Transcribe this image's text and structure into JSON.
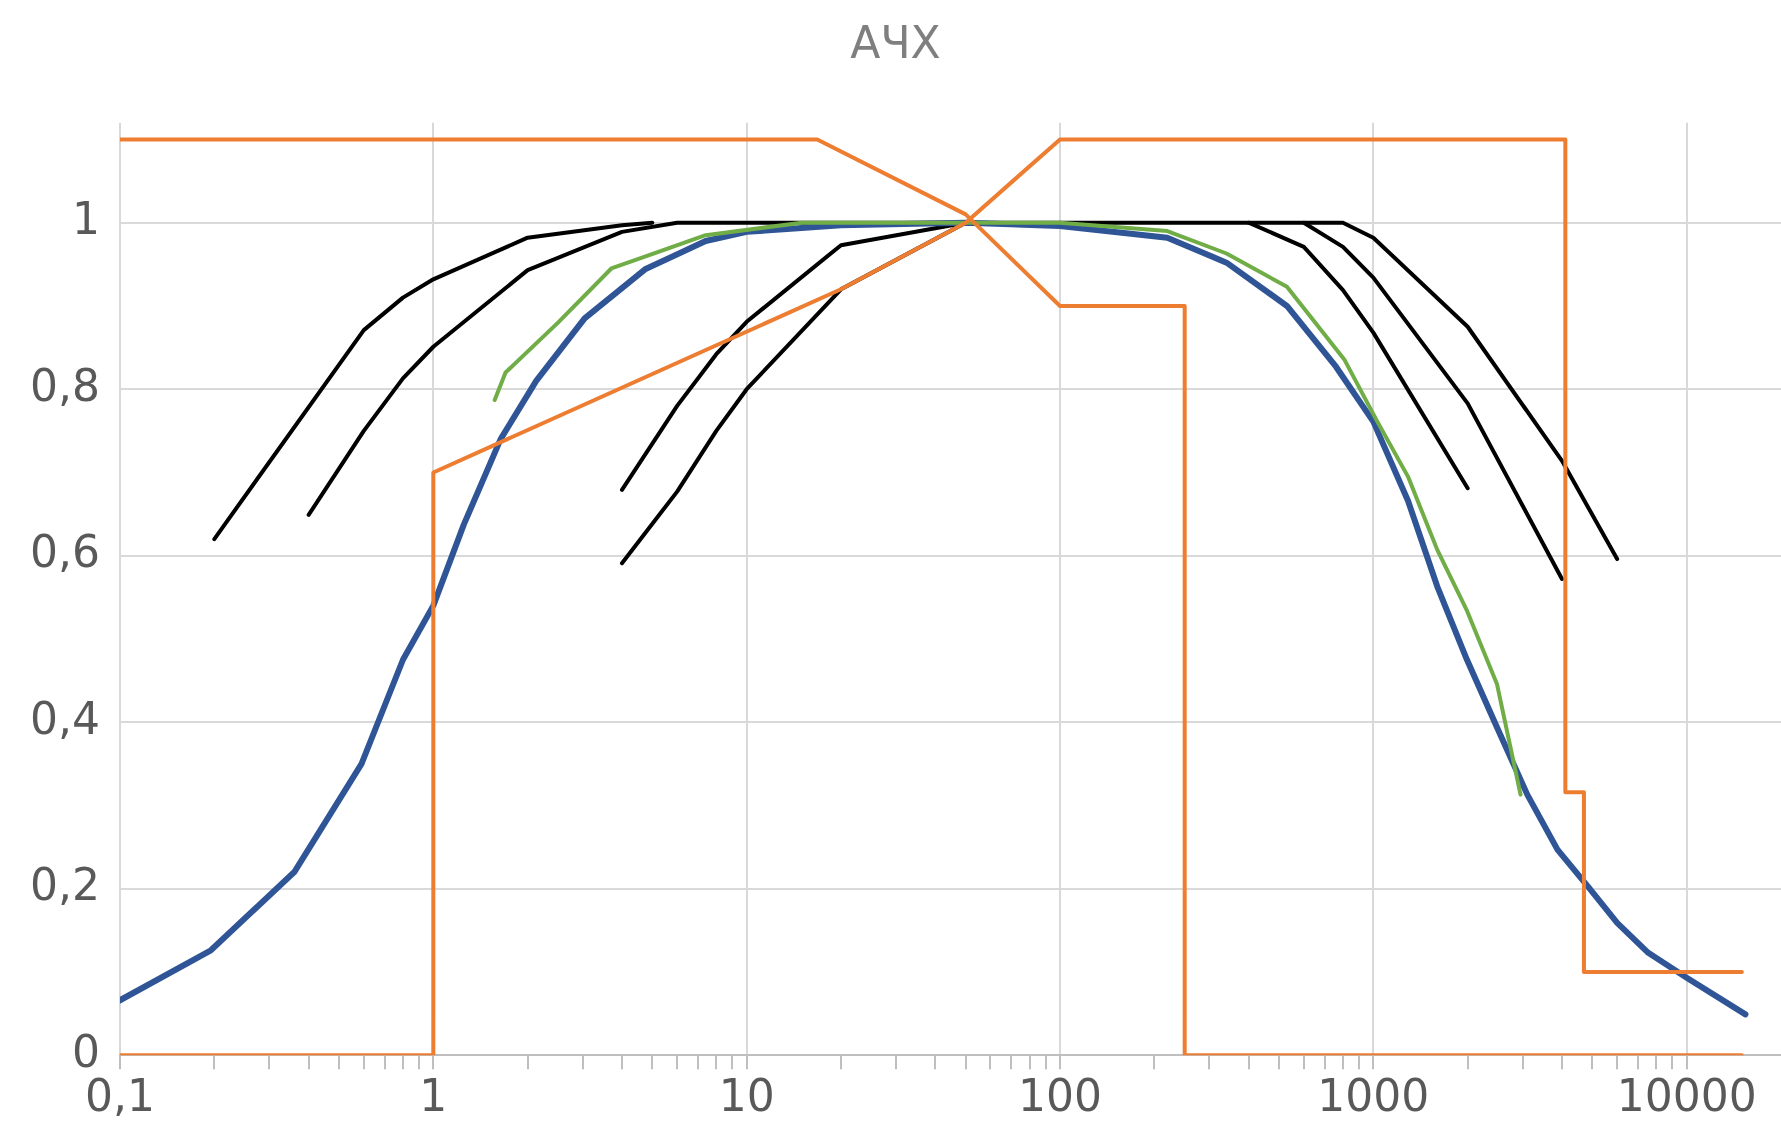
{
  "chart_data": {
    "type": "line",
    "title": "АЧХ",
    "log": "x",
    "grid": true,
    "xlim": [
      0.1,
      20000
    ],
    "xticks": [
      {
        "value": 0.1,
        "label": "0,1"
      },
      {
        "value": 0.2,
        "label": null
      },
      {
        "value": 0.3,
        "label": null
      },
      {
        "value": 0.4,
        "label": null
      },
      {
        "value": 0.5,
        "label": null
      },
      {
        "value": 0.6,
        "label": null
      },
      {
        "value": 0.7,
        "label": null
      },
      {
        "value": 0.8,
        "label": null
      },
      {
        "value": 0.9,
        "label": null
      },
      1,
      {
        "value": 2,
        "label": null
      },
      {
        "value": 3,
        "label": null
      },
      {
        "value": 4,
        "label": null
      },
      {
        "value": 5,
        "label": null
      },
      {
        "value": 6,
        "label": null
      },
      {
        "value": 7,
        "label": null
      },
      {
        "value": 8,
        "label": null
      },
      {
        "value": 9,
        "label": null
      },
      10,
      {
        "value": 20,
        "label": null
      },
      {
        "value": 30,
        "label": null
      },
      {
        "value": 40,
        "label": null
      },
      {
        "value": 50,
        "label": null
      },
      {
        "value": 60,
        "label": null
      },
      {
        "value": 70,
        "label": null
      },
      {
        "value": 80,
        "label": null
      },
      {
        "value": 90,
        "label": null
      },
      100,
      {
        "value": 200,
        "label": null
      },
      {
        "value": 300,
        "label": null
      },
      {
        "value": 400,
        "label": null
      },
      {
        "value": 500,
        "label": null
      },
      {
        "value": 600,
        "label": null
      },
      {
        "value": 700,
        "label": null
      },
      {
        "value": 800,
        "label": null
      },
      {
        "value": 900,
        "label": null
      },
      1000,
      {
        "value": 2000,
        "label": null
      },
      {
        "value": 3000,
        "label": null
      },
      {
        "value": 4000,
        "label": null
      },
      {
        "value": 5000,
        "label": null
      },
      {
        "value": 6000,
        "label": null
      },
      {
        "value": 7000,
        "label": null
      },
      {
        "value": 8000,
        "label": null
      },
      {
        "value": 9000,
        "label": null
      },
      10000
    ],
    "ylim": [
      0,
      1.12
    ],
    "yticks": [
      0,
      {
        "value": 0.2,
        "label": "0,2"
      },
      {
        "value": 0.4,
        "label": "0,4"
      },
      {
        "value": 0.6,
        "label": "0,6"
      },
      {
        "value": 0.8,
        "label": "0,8"
      },
      1
    ],
    "series": [
      {
        "color": "#ed7d31",
        "x": [
          0.1,
          1,
          1,
          20,
          50,
          100,
          4100,
          4100,
          4700,
          4700,
          15000
        ],
        "values": [
          0,
          0,
          0.7,
          0.92,
          1.0,
          1.1,
          1.1,
          0.316,
          0.316,
          0.1,
          0.1
        ]
      },
      {
        "color": "#ed7d31",
        "x": [
          0.1,
          16.8,
          50,
          100,
          250,
          250,
          15000
        ],
        "values": [
          1.1,
          1.1,
          1.01,
          0.9,
          0.9,
          0,
          0
        ]
      },
      {
        "color": "#70ad47",
        "x": [
          1.57,
          1.7,
          2.5,
          3.7,
          7.4,
          15,
          50,
          100,
          220,
          340,
          530,
          810,
          1030,
          1290,
          1600,
          1990,
          2480,
          2950
        ],
        "values": [
          0.787,
          0.82,
          0.88,
          0.945,
          0.985,
          1.0,
          1.0,
          1.0,
          0.99,
          0.963,
          0.923,
          0.835,
          0.761,
          0.695,
          0.607,
          0.534,
          0.446,
          0.313
        ]
      },
      {
        "color": "#2f5597",
        "x": [
          0.1,
          0.195,
          0.36,
          0.59,
          0.8,
          1,
          1.25,
          1.64,
          2.13,
          3.04,
          4.74,
          7.4,
          10,
          20,
          50,
          100,
          220,
          340,
          530,
          760,
          1000,
          1290,
          1600,
          1990,
          2480,
          3100,
          3870,
          4830,
          6000,
          7540,
          10000,
          15400
        ],
        "values": [
          0.066,
          0.126,
          0.22,
          0.35,
          0.475,
          0.54,
          0.637,
          0.74,
          0.81,
          0.885,
          0.944,
          0.978,
          0.989,
          0.997,
          1.0,
          0.996,
          0.982,
          0.952,
          0.9,
          0.827,
          0.761,
          0.666,
          0.563,
          0.475,
          0.394,
          0.313,
          0.247,
          0.203,
          0.159,
          0.123,
          0.093,
          0.049
        ]
      },
      {
        "color": "#000000",
        "x": [
          0.2,
          0.6,
          0.8,
          1,
          2,
          4,
          5
        ],
        "values": [
          0.62,
          0.871,
          0.91,
          0.932,
          0.982,
          0.997,
          1.0
        ]
      },
      {
        "color": "#000000",
        "x": [
          0.4,
          0.6,
          0.8,
          1,
          2,
          4,
          6,
          400,
          600,
          800,
          1000,
          2000
        ],
        "values": [
          0.649,
          0.75,
          0.813,
          0.851,
          0.943,
          0.989,
          1.0,
          1.0,
          0.971,
          0.919,
          0.868,
          0.681
        ]
      },
      {
        "color": "#000000",
        "x": [
          4,
          6,
          8,
          10,
          20,
          50
        ],
        "values": [
          0.679,
          0.78,
          0.842,
          0.881,
          0.973,
          1.0
        ]
      },
      {
        "color": "#000000",
        "x": [
          4,
          6,
          8,
          10,
          20,
          50
        ],
        "values": [
          0.591,
          0.677,
          0.75,
          0.8,
          0.92,
          1.0
        ]
      },
      {
        "color": "#000000",
        "x": [
          400,
          600,
          800,
          1000,
          2000,
          4000
        ],
        "values": [
          1.0,
          1.0,
          0.971,
          0.934,
          0.783,
          0.572
        ]
      },
      {
        "color": "#000000",
        "x": [
          600,
          800,
          1000,
          2000,
          4000,
          6000
        ],
        "values": [
          1.0,
          1.0,
          0.982,
          0.875,
          0.714,
          0.596
        ]
      }
    ]
  }
}
